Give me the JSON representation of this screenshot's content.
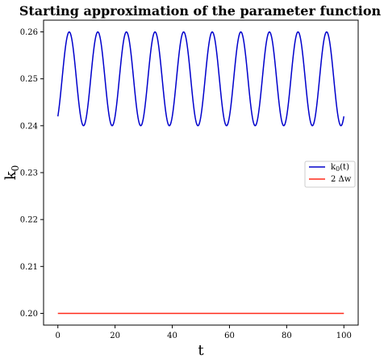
{
  "chart_data": {
    "type": "line",
    "title": "Starting approximation of the parameter function",
    "xlabel": "t",
    "ylabel": "k",
    "ylabel_sub": "0",
    "xlim": [
      -5,
      105
    ],
    "ylim": [
      0.1975,
      0.2625
    ],
    "xticks": [
      0,
      20,
      40,
      60,
      80,
      100
    ],
    "yticks": [
      0.2,
      0.21,
      0.22,
      0.23,
      0.24,
      0.25,
      0.26
    ],
    "xtick_labels": [
      "0",
      "20",
      "40",
      "60",
      "80",
      "100"
    ],
    "ytick_labels": [
      "0.20",
      "0.21",
      "0.22",
      "0.23",
      "0.24",
      "0.25",
      "0.26"
    ],
    "grid": false,
    "legend_position": "center-right",
    "series": [
      {
        "name": "k",
        "name_sub": "0",
        "name_suffix": "(t)",
        "color": "#0000cc",
        "function": {
          "kind": "sinusoid",
          "offset": 0.25,
          "amplitude": 0.01,
          "frequency_cycles_per_unit": 0.1,
          "phase_rad": -0.9273,
          "x_range": [
            0,
            100
          ]
        }
      },
      {
        "name": "2 Δw",
        "color": "#ff2a1a",
        "x": [
          0,
          100
        ],
        "y": [
          0.2,
          0.2
        ]
      }
    ]
  }
}
